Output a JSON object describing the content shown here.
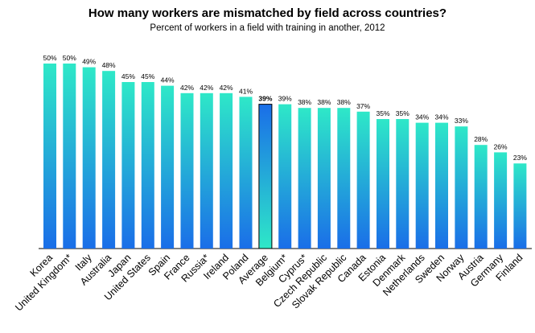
{
  "chart_data": {
    "type": "bar",
    "title": "How many workers are mismatched by field across countries?",
    "subtitle": "Percent of workers in a field with training in another, 2012",
    "xlabel": "",
    "ylabel": "",
    "ylim": [
      0,
      50
    ],
    "grid": false,
    "legend": "none",
    "unit": "%",
    "highlight_category": "Average",
    "categories": [
      "Korea",
      "United Kingdom*",
      "Italy",
      "Australia",
      "Japan",
      "United States",
      "Spain",
      "France",
      "Russia*",
      "Ireland",
      "Poland",
      "Average",
      "Belgium*",
      "Cyprus*",
      "Czech Republic",
      "Slovak Republic",
      "Canada",
      "Estonia",
      "Denmark",
      "Netherlands",
      "Sweden",
      "Norway",
      "Austria",
      "Germany",
      "Finland"
    ],
    "values": [
      50,
      50,
      49,
      48,
      45,
      45,
      44,
      42,
      42,
      42,
      41,
      39,
      39,
      38,
      38,
      38,
      37,
      35,
      35,
      34,
      34,
      33,
      28,
      26,
      23
    ],
    "colors": {
      "bar_top": "#2ee8c8",
      "bar_bottom": "#1a6ee8",
      "bar_top_flip": "#1a6ee8",
      "bar_bottom_flip": "#2ee8c8",
      "axis": "#000000",
      "highlight_edge": "#000000"
    }
  }
}
